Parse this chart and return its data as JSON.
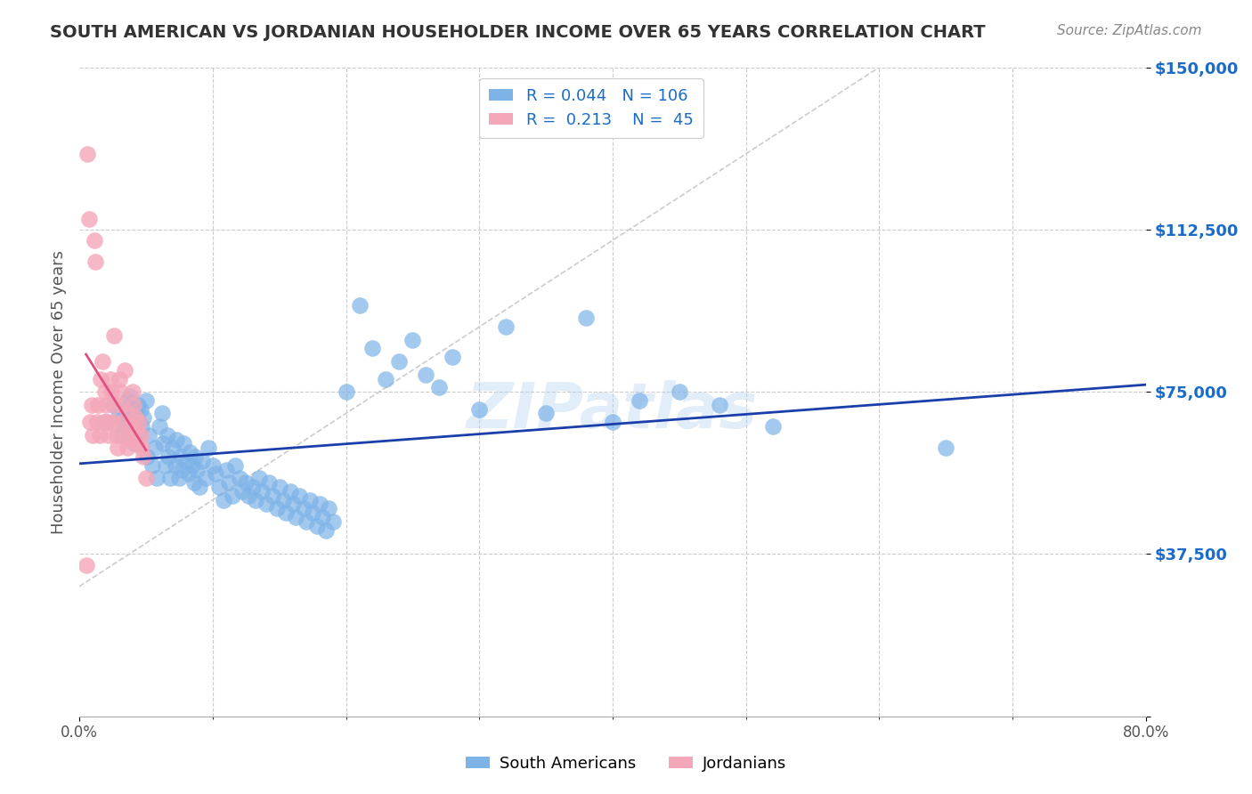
{
  "title": "SOUTH AMERICAN VS JORDANIAN HOUSEHOLDER INCOME OVER 65 YEARS CORRELATION CHART",
  "source": "Source: ZipAtlas.com",
  "ylabel": "Householder Income Over 65 years",
  "xlabel": "",
  "xlim": [
    0.0,
    0.8
  ],
  "ylim": [
    0,
    150000
  ],
  "yticks": [
    0,
    37500,
    75000,
    112500,
    150000
  ],
  "ytick_labels": [
    "",
    "$37,500",
    "$75,000",
    "$112,500",
    "$150,000"
  ],
  "xtick_labels": [
    "0.0%",
    "80.0%"
  ],
  "grid_color": "#cccccc",
  "background_color": "#ffffff",
  "blue_color": "#7EB3E8",
  "pink_color": "#F4A7B9",
  "blue_line_color": "#1A3FAA",
  "pink_line_color": "#E05080",
  "dashed_line_color": "#cccccc",
  "legend_R_blue": "0.044",
  "legend_N_blue": "106",
  "legend_R_pink": "0.213",
  "legend_N_pink": "45",
  "watermark": "ZIPatlas",
  "title_color": "#333333",
  "axis_label_color": "#555555",
  "right_tick_color": "#1A6CC8",
  "blue_x": [
    0.02,
    0.025,
    0.03,
    0.032,
    0.033,
    0.034,
    0.035,
    0.036,
    0.037,
    0.038,
    0.04,
    0.041,
    0.042,
    0.043,
    0.044,
    0.045,
    0.046,
    0.047,
    0.048,
    0.05,
    0.051,
    0.052,
    0.055,
    0.057,
    0.058,
    0.06,
    0.062,
    0.063,
    0.065,
    0.066,
    0.067,
    0.068,
    0.07,
    0.072,
    0.073,
    0.075,
    0.076,
    0.077,
    0.078,
    0.08,
    0.082,
    0.083,
    0.085,
    0.086,
    0.087,
    0.088,
    0.09,
    0.092,
    0.095,
    0.097,
    0.1,
    0.102,
    0.105,
    0.108,
    0.11,
    0.112,
    0.115,
    0.117,
    0.12,
    0.122,
    0.125,
    0.127,
    0.13,
    0.132,
    0.135,
    0.137,
    0.14,
    0.142,
    0.145,
    0.148,
    0.15,
    0.153,
    0.155,
    0.158,
    0.16,
    0.162,
    0.165,
    0.168,
    0.17,
    0.173,
    0.175,
    0.178,
    0.18,
    0.182,
    0.185,
    0.187,
    0.19,
    0.2,
    0.21,
    0.22,
    0.23,
    0.24,
    0.25,
    0.26,
    0.27,
    0.28,
    0.3,
    0.32,
    0.35,
    0.38,
    0.4,
    0.42,
    0.45,
    0.48,
    0.52,
    0.65
  ],
  "blue_y": [
    68000,
    72000,
    70000,
    65000,
    69000,
    67000,
    71000,
    73000,
    66000,
    74000,
    68000,
    63000,
    70000,
    65000,
    72000,
    68000,
    71000,
    67000,
    69000,
    73000,
    60000,
    65000,
    58000,
    62000,
    55000,
    67000,
    70000,
    63000,
    58000,
    65000,
    60000,
    55000,
    62000,
    58000,
    64000,
    55000,
    60000,
    57000,
    63000,
    59000,
    56000,
    61000,
    58000,
    54000,
    60000,
    57000,
    53000,
    59000,
    55000,
    62000,
    58000,
    56000,
    53000,
    50000,
    57000,
    54000,
    51000,
    58000,
    55000,
    52000,
    54000,
    51000,
    53000,
    50000,
    55000,
    52000,
    49000,
    54000,
    51000,
    48000,
    53000,
    50000,
    47000,
    52000,
    49000,
    46000,
    51000,
    48000,
    45000,
    50000,
    47000,
    44000,
    49000,
    46000,
    43000,
    48000,
    45000,
    75000,
    95000,
    85000,
    78000,
    82000,
    87000,
    79000,
    76000,
    83000,
    71000,
    90000,
    70000,
    92000,
    68000,
    73000,
    75000,
    72000,
    67000,
    62000
  ],
  "pink_x": [
    0.005,
    0.006,
    0.007,
    0.008,
    0.009,
    0.01,
    0.011,
    0.012,
    0.013,
    0.014,
    0.015,
    0.016,
    0.017,
    0.018,
    0.019,
    0.02,
    0.021,
    0.022,
    0.023,
    0.024,
    0.025,
    0.026,
    0.027,
    0.028,
    0.029,
    0.03,
    0.031,
    0.032,
    0.033,
    0.034,
    0.035,
    0.036,
    0.037,
    0.038,
    0.039,
    0.04,
    0.041,
    0.042,
    0.043,
    0.044,
    0.045,
    0.046,
    0.047,
    0.048,
    0.05
  ],
  "pink_y": [
    35000,
    130000,
    115000,
    68000,
    72000,
    65000,
    110000,
    105000,
    68000,
    72000,
    65000,
    78000,
    82000,
    68000,
    75000,
    72000,
    68000,
    65000,
    78000,
    75000,
    68000,
    88000,
    72000,
    65000,
    62000,
    78000,
    75000,
    72000,
    68000,
    80000,
    65000,
    62000,
    70000,
    67000,
    64000,
    75000,
    72000,
    69000,
    66000,
    63000,
    68000,
    65000,
    62000,
    60000,
    55000
  ]
}
